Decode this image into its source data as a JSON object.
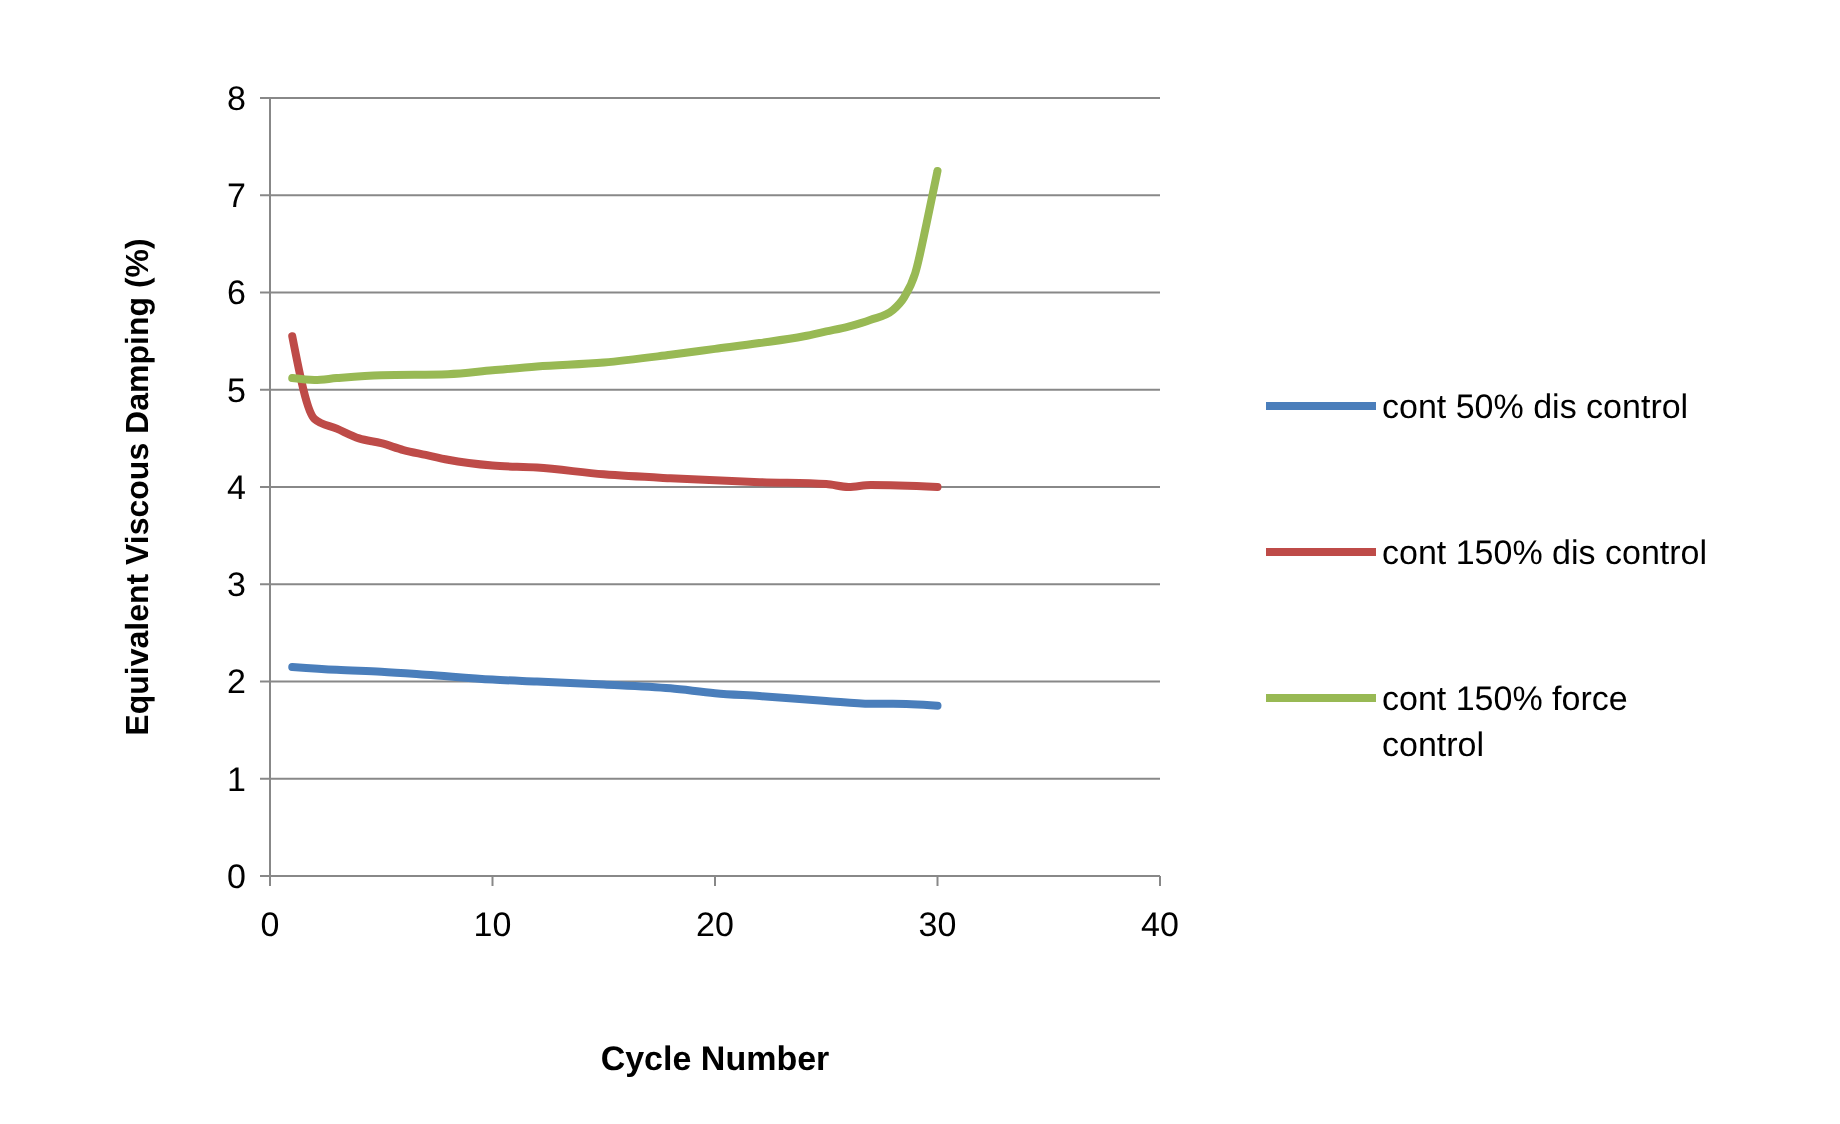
{
  "chart_data": {
    "type": "line",
    "xlabel": "Cycle Number",
    "ylabel": "Equivalent Viscous Damping (%)",
    "xlim": [
      0,
      40
    ],
    "xticks": [
      0,
      10,
      20,
      30,
      40
    ],
    "ylim": [
      0,
      8
    ],
    "yticks": [
      0,
      1,
      2,
      3,
      4,
      5,
      6,
      7,
      8
    ],
    "grid": "y",
    "legend": "right",
    "marker": "none",
    "line_style": "solid",
    "series": [
      {
        "name": "cont 50% dis control",
        "color": "#4a7ebb",
        "x": [
          1,
          3,
          5,
          7,
          10,
          12,
          15,
          18,
          20,
          22,
          25,
          27,
          28,
          30
        ],
        "values": [
          2.15,
          2.12,
          2.1,
          2.07,
          2.02,
          2.0,
          1.97,
          1.93,
          1.88,
          1.85,
          1.8,
          1.77,
          1.77,
          1.75
        ]
      },
      {
        "name": "cont 150% dis control",
        "color": "#be4b48",
        "x": [
          1,
          2,
          3,
          4,
          5,
          6,
          7,
          8,
          10,
          12,
          15,
          18,
          20,
          22,
          25,
          26,
          27,
          30
        ],
        "values": [
          5.55,
          4.7,
          4.6,
          4.5,
          4.45,
          4.38,
          4.33,
          4.28,
          4.22,
          4.2,
          4.13,
          4.09,
          4.07,
          4.05,
          4.03,
          4.0,
          4.02,
          4.0
        ]
      },
      {
        "name": "cont 150% force control",
        "color": "#98b954",
        "x": [
          1,
          2,
          3,
          5,
          8,
          10,
          12,
          15,
          18,
          20,
          22,
          24,
          25,
          26,
          27,
          28,
          28.5,
          29,
          29.5,
          30
        ],
        "values": [
          5.12,
          5.1,
          5.12,
          5.15,
          5.16,
          5.2,
          5.24,
          5.28,
          5.36,
          5.42,
          5.48,
          5.55,
          5.6,
          5.65,
          5.72,
          5.82,
          5.95,
          6.2,
          6.7,
          7.25
        ]
      }
    ]
  }
}
